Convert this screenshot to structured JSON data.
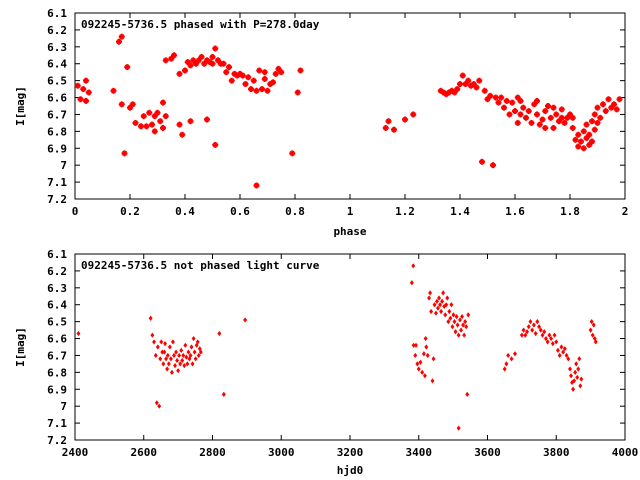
{
  "chart_data": [
    {
      "type": "scatter",
      "title": "092245-5736.5 phased with P=278.0day",
      "xlabel": "phase",
      "ylabel": "I[mag]",
      "xlim": [
        0,
        2
      ],
      "ylim": [
        7.2,
        6.1
      ],
      "y_inverted": true,
      "grid": false,
      "marker": "star",
      "color": "#ff0000",
      "xticks": [
        "0",
        "0.2",
        "0.4",
        "0.6",
        "0.8",
        "1",
        "1.2",
        "1.4",
        "1.6",
        "1.8",
        "2"
      ],
      "yticks": [
        "6.1",
        "6.2",
        "6.3",
        "6.4",
        "6.5",
        "6.6",
        "6.7",
        "6.8",
        "6.9",
        "7",
        "7.1",
        "7.2"
      ],
      "points": [
        [
          0.01,
          6.53
        ],
        [
          0.02,
          6.61
        ],
        [
          0.03,
          6.55
        ],
        [
          0.04,
          6.5
        ],
        [
          0.04,
          6.62
        ],
        [
          0.05,
          6.57
        ],
        [
          0.14,
          6.56
        ],
        [
          0.16,
          6.27
        ],
        [
          0.17,
          6.64
        ],
        [
          0.17,
          6.24
        ],
        [
          0.18,
          6.93
        ],
        [
          0.19,
          6.42
        ],
        [
          0.2,
          6.66
        ],
        [
          0.21,
          6.64
        ],
        [
          0.22,
          6.75
        ],
        [
          0.24,
          6.77
        ],
        [
          0.25,
          6.71
        ],
        [
          0.26,
          6.77
        ],
        [
          0.27,
          6.69
        ],
        [
          0.28,
          6.76
        ],
        [
          0.29,
          6.71
        ],
        [
          0.29,
          6.8
        ],
        [
          0.3,
          6.69
        ],
        [
          0.31,
          6.74
        ],
        [
          0.32,
          6.78
        ],
        [
          0.32,
          6.63
        ],
        [
          0.33,
          6.71
        ],
        [
          0.33,
          6.38
        ],
        [
          0.35,
          6.37
        ],
        [
          0.36,
          6.35
        ],
        [
          0.38,
          6.76
        ],
        [
          0.38,
          6.46
        ],
        [
          0.39,
          6.82
        ],
        [
          0.4,
          6.44
        ],
        [
          0.41,
          6.39
        ],
        [
          0.42,
          6.41
        ],
        [
          0.42,
          6.74
        ],
        [
          0.43,
          6.38
        ],
        [
          0.44,
          6.4
        ],
        [
          0.45,
          6.38
        ],
        [
          0.46,
          6.36
        ],
        [
          0.47,
          6.4
        ],
        [
          0.48,
          6.38
        ],
        [
          0.48,
          6.73
        ],
        [
          0.49,
          6.39
        ],
        [
          0.5,
          6.4
        ],
        [
          0.5,
          6.36
        ],
        [
          0.51,
          6.31
        ],
        [
          0.52,
          6.38
        ],
        [
          0.51,
          6.88
        ],
        [
          0.53,
          6.4
        ],
        [
          0.54,
          6.4
        ],
        [
          0.55,
          6.45
        ],
        [
          0.56,
          6.42
        ],
        [
          0.57,
          6.5
        ],
        [
          0.58,
          6.46
        ],
        [
          0.59,
          6.47
        ],
        [
          0.6,
          6.46
        ],
        [
          0.61,
          6.47
        ],
        [
          0.62,
          6.52
        ],
        [
          0.63,
          6.48
        ],
        [
          0.64,
          6.55
        ],
        [
          0.65,
          6.5
        ],
        [
          0.66,
          6.56
        ],
        [
          0.66,
          7.12
        ],
        [
          0.67,
          6.44
        ],
        [
          0.68,
          6.55
        ],
        [
          0.69,
          6.49
        ],
        [
          0.69,
          6.45
        ],
        [
          0.7,
          6.56
        ],
        [
          0.71,
          6.52
        ],
        [
          0.72,
          6.51
        ],
        [
          0.73,
          6.46
        ],
        [
          0.74,
          6.43
        ],
        [
          0.75,
          6.45
        ],
        [
          0.79,
          6.93
        ],
        [
          0.81,
          6.57
        ],
        [
          0.82,
          6.44
        ],
        [
          1.13,
          6.78
        ],
        [
          1.14,
          6.74
        ],
        [
          1.16,
          6.79
        ],
        [
          1.2,
          6.73
        ],
        [
          1.23,
          6.7
        ],
        [
          1.33,
          6.56
        ],
        [
          1.34,
          6.57
        ],
        [
          1.35,
          6.58
        ],
        [
          1.36,
          6.57
        ],
        [
          1.37,
          6.56
        ],
        [
          1.38,
          6.57
        ],
        [
          1.39,
          6.55
        ],
        [
          1.4,
          6.52
        ],
        [
          1.41,
          6.47
        ],
        [
          1.42,
          6.52
        ],
        [
          1.43,
          6.5
        ],
        [
          1.44,
          6.53
        ],
        [
          1.45,
          6.52
        ],
        [
          1.46,
          6.54
        ],
        [
          1.47,
          6.5
        ],
        [
          1.48,
          6.98
        ],
        [
          1.49,
          6.56
        ],
        [
          1.5,
          6.61
        ],
        [
          1.51,
          6.59
        ],
        [
          1.52,
          7.0
        ],
        [
          1.53,
          6.6
        ],
        [
          1.54,
          6.63
        ],
        [
          1.55,
          6.6
        ],
        [
          1.56,
          6.66
        ],
        [
          1.57,
          6.62
        ],
        [
          1.58,
          6.7
        ],
        [
          1.59,
          6.63
        ],
        [
          1.6,
          6.68
        ],
        [
          1.61,
          6.75
        ],
        [
          1.61,
          6.6
        ],
        [
          1.62,
          6.7
        ],
        [
          1.62,
          6.62
        ],
        [
          1.63,
          6.66
        ],
        [
          1.64,
          6.72
        ],
        [
          1.65,
          6.68
        ],
        [
          1.66,
          6.75
        ],
        [
          1.67,
          6.64
        ],
        [
          1.68,
          6.7
        ],
        [
          1.68,
          6.62
        ],
        [
          1.69,
          6.76
        ],
        [
          1.7,
          6.73
        ],
        [
          1.71,
          6.68
        ],
        [
          1.71,
          6.78
        ],
        [
          1.72,
          6.65
        ],
        [
          1.73,
          6.72
        ],
        [
          1.74,
          6.66
        ],
        [
          1.74,
          6.78
        ],
        [
          1.75,
          6.7
        ],
        [
          1.76,
          6.74
        ],
        [
          1.77,
          6.72
        ],
        [
          1.77,
          6.67
        ],
        [
          1.78,
          6.75
        ],
        [
          1.79,
          6.72
        ],
        [
          1.8,
          6.7
        ],
        [
          1.81,
          6.78
        ],
        [
          1.81,
          6.72
        ],
        [
          1.82,
          6.85
        ],
        [
          1.83,
          6.89
        ],
        [
          1.83,
          6.82
        ],
        [
          1.84,
          6.86
        ],
        [
          1.85,
          6.8
        ],
        [
          1.85,
          6.9
        ],
        [
          1.86,
          6.84
        ],
        [
          1.86,
          6.76
        ],
        [
          1.87,
          6.88
        ],
        [
          1.87,
          6.82
        ],
        [
          1.88,
          6.74
        ],
        [
          1.88,
          6.86
        ],
        [
          1.89,
          6.7
        ],
        [
          1.89,
          6.79
        ],
        [
          1.9,
          6.75
        ],
        [
          1.9,
          6.66
        ],
        [
          1.91,
          6.72
        ],
        [
          1.92,
          6.64
        ],
        [
          1.93,
          6.68
        ],
        [
          1.94,
          6.61
        ],
        [
          1.95,
          6.66
        ],
        [
          1.96,
          6.64
        ],
        [
          1.97,
          6.67
        ],
        [
          1.98,
          6.61
        ]
      ]
    },
    {
      "type": "scatter",
      "title": "092245-5736.5 not phased light curve",
      "xlabel": "hjd0",
      "ylabel": "I[mag]",
      "xlim": [
        2400,
        4000
      ],
      "ylim": [
        7.2,
        6.1
      ],
      "y_inverted": true,
      "grid": false,
      "marker": "diamond",
      "color": "#ff0000",
      "xticks": [
        "2400",
        "2600",
        "2800",
        "3000",
        "3200",
        "3400",
        "3600",
        "3800",
        "4000"
      ],
      "yticks": [
        "6.1",
        "6.2",
        "6.3",
        "6.4",
        "6.5",
        "6.6",
        "6.7",
        "6.8",
        "6.9",
        "7",
        "7.1",
        "7.2"
      ],
      "points": [
        [
          2410,
          6.57
        ],
        [
          2620,
          6.48
        ],
        [
          2625,
          6.58
        ],
        [
          2630,
          6.62
        ],
        [
          2635,
          6.7
        ],
        [
          2638,
          6.98
        ],
        [
          2641,
          6.65
        ],
        [
          2645,
          7.0
        ],
        [
          2648,
          6.72
        ],
        [
          2651,
          6.62
        ],
        [
          2654,
          6.68
        ],
        [
          2657,
          6.75
        ],
        [
          2660,
          6.68
        ],
        [
          2662,
          6.63
        ],
        [
          2665,
          6.72
        ],
        [
          2668,
          6.78
        ],
        [
          2670,
          6.7
        ],
        [
          2673,
          6.75
        ],
        [
          2676,
          6.65
        ],
        [
          2679,
          6.72
        ],
        [
          2682,
          6.8
        ],
        [
          2685,
          6.62
        ],
        [
          2688,
          6.7
        ],
        [
          2691,
          6.76
        ],
        [
          2694,
          6.68
        ],
        [
          2697,
          6.73
        ],
        [
          2700,
          6.79
        ],
        [
          2703,
          6.7
        ],
        [
          2706,
          6.75
        ],
        [
          2709,
          6.67
        ],
        [
          2712,
          6.73
        ],
        [
          2715,
          6.7
        ],
        [
          2718,
          6.76
        ],
        [
          2721,
          6.64
        ],
        [
          2724,
          6.71
        ],
        [
          2727,
          6.75
        ],
        [
          2730,
          6.68
        ],
        [
          2733,
          6.72
        ],
        [
          2736,
          6.7
        ],
        [
          2739,
          6.65
        ],
        [
          2742,
          6.75
        ],
        [
          2745,
          6.6
        ],
        [
          2748,
          6.68
        ],
        [
          2751,
          6.72
        ],
        [
          2754,
          6.64
        ],
        [
          2757,
          6.62
        ],
        [
          2760,
          6.7
        ],
        [
          2763,
          6.66
        ],
        [
          2766,
          6.68
        ],
        [
          2820,
          6.57
        ],
        [
          2833,
          6.93
        ],
        [
          2895,
          6.49
        ],
        [
          3380,
          6.27
        ],
        [
          3384,
          6.17
        ],
        [
          3385,
          6.64
        ],
        [
          3390,
          6.7
        ],
        [
          3392,
          6.64
        ],
        [
          3396,
          6.75
        ],
        [
          3400,
          6.78
        ],
        [
          3405,
          6.74
        ],
        [
          3410,
          6.8
        ],
        [
          3415,
          6.69
        ],
        [
          3418,
          6.82
        ],
        [
          3420,
          6.6
        ],
        [
          3422,
          6.65
        ],
        [
          3426,
          6.7
        ],
        [
          3430,
          6.36
        ],
        [
          3433,
          6.33
        ],
        [
          3436,
          6.44
        ],
        [
          3440,
          6.85
        ],
        [
          3443,
          6.72
        ],
        [
          3446,
          6.4
        ],
        [
          3450,
          6.45
        ],
        [
          3453,
          6.38
        ],
        [
          3456,
          6.42
        ],
        [
          3459,
          6.36
        ],
        [
          3462,
          6.4
        ],
        [
          3465,
          6.44
        ],
        [
          3468,
          6.38
        ],
        [
          3471,
          6.33
        ],
        [
          3474,
          6.41
        ],
        [
          3477,
          6.46
        ],
        [
          3480,
          6.4
        ],
        [
          3483,
          6.36
        ],
        [
          3486,
          6.5
        ],
        [
          3489,
          6.44
        ],
        [
          3492,
          6.48
        ],
        [
          3495,
          6.4
        ],
        [
          3498,
          6.53
        ],
        [
          3501,
          6.46
        ],
        [
          3504,
          6.5
        ],
        [
          3507,
          6.56
        ],
        [
          3510,
          6.47
        ],
        [
          3513,
          6.52
        ],
        [
          3516,
          6.58
        ],
        [
          3516,
          7.13
        ],
        [
          3520,
          6.49
        ],
        [
          3523,
          6.55
        ],
        [
          3526,
          6.47
        ],
        [
          3529,
          6.52
        ],
        [
          3532,
          6.58
        ],
        [
          3535,
          6.5
        ],
        [
          3538,
          6.53
        ],
        [
          3541,
          6.93
        ],
        [
          3544,
          6.46
        ],
        [
          3650,
          6.78
        ],
        [
          3655,
          6.75
        ],
        [
          3660,
          6.7
        ],
        [
          3670,
          6.72
        ],
        [
          3680,
          6.69
        ],
        [
          3700,
          6.58
        ],
        [
          3705,
          6.55
        ],
        [
          3710,
          6.58
        ],
        [
          3715,
          6.56
        ],
        [
          3720,
          6.53
        ],
        [
          3725,
          6.5
        ],
        [
          3730,
          6.55
        ],
        [
          3735,
          6.52
        ],
        [
          3740,
          6.57
        ],
        [
          3745,
          6.5
        ],
        [
          3750,
          6.53
        ],
        [
          3755,
          6.55
        ],
        [
          3760,
          6.58
        ],
        [
          3765,
          6.56
        ],
        [
          3770,
          6.6
        ],
        [
          3775,
          6.62
        ],
        [
          3780,
          6.58
        ],
        [
          3785,
          6.6
        ],
        [
          3790,
          6.63
        ],
        [
          3795,
          6.58
        ],
        [
          3800,
          6.62
        ],
        [
          3805,
          6.67
        ],
        [
          3810,
          6.7
        ],
        [
          3815,
          6.65
        ],
        [
          3820,
          6.68
        ],
        [
          3825,
          6.66
        ],
        [
          3830,
          6.7
        ],
        [
          3835,
          6.72
        ],
        [
          3840,
          6.78
        ],
        [
          3843,
          6.82
        ],
        [
          3846,
          6.86
        ],
        [
          3849,
          6.9
        ],
        [
          3852,
          6.85
        ],
        [
          3855,
          6.8
        ],
        [
          3858,
          6.75
        ],
        [
          3861,
          6.83
        ],
        [
          3864,
          6.78
        ],
        [
          3867,
          6.72
        ],
        [
          3870,
          6.88
        ],
        [
          3873,
          6.84
        ],
        [
          3900,
          6.55
        ],
        [
          3903,
          6.5
        ],
        [
          3906,
          6.58
        ],
        [
          3909,
          6.52
        ],
        [
          3912,
          6.6
        ],
        [
          3915,
          6.62
        ]
      ]
    }
  ]
}
